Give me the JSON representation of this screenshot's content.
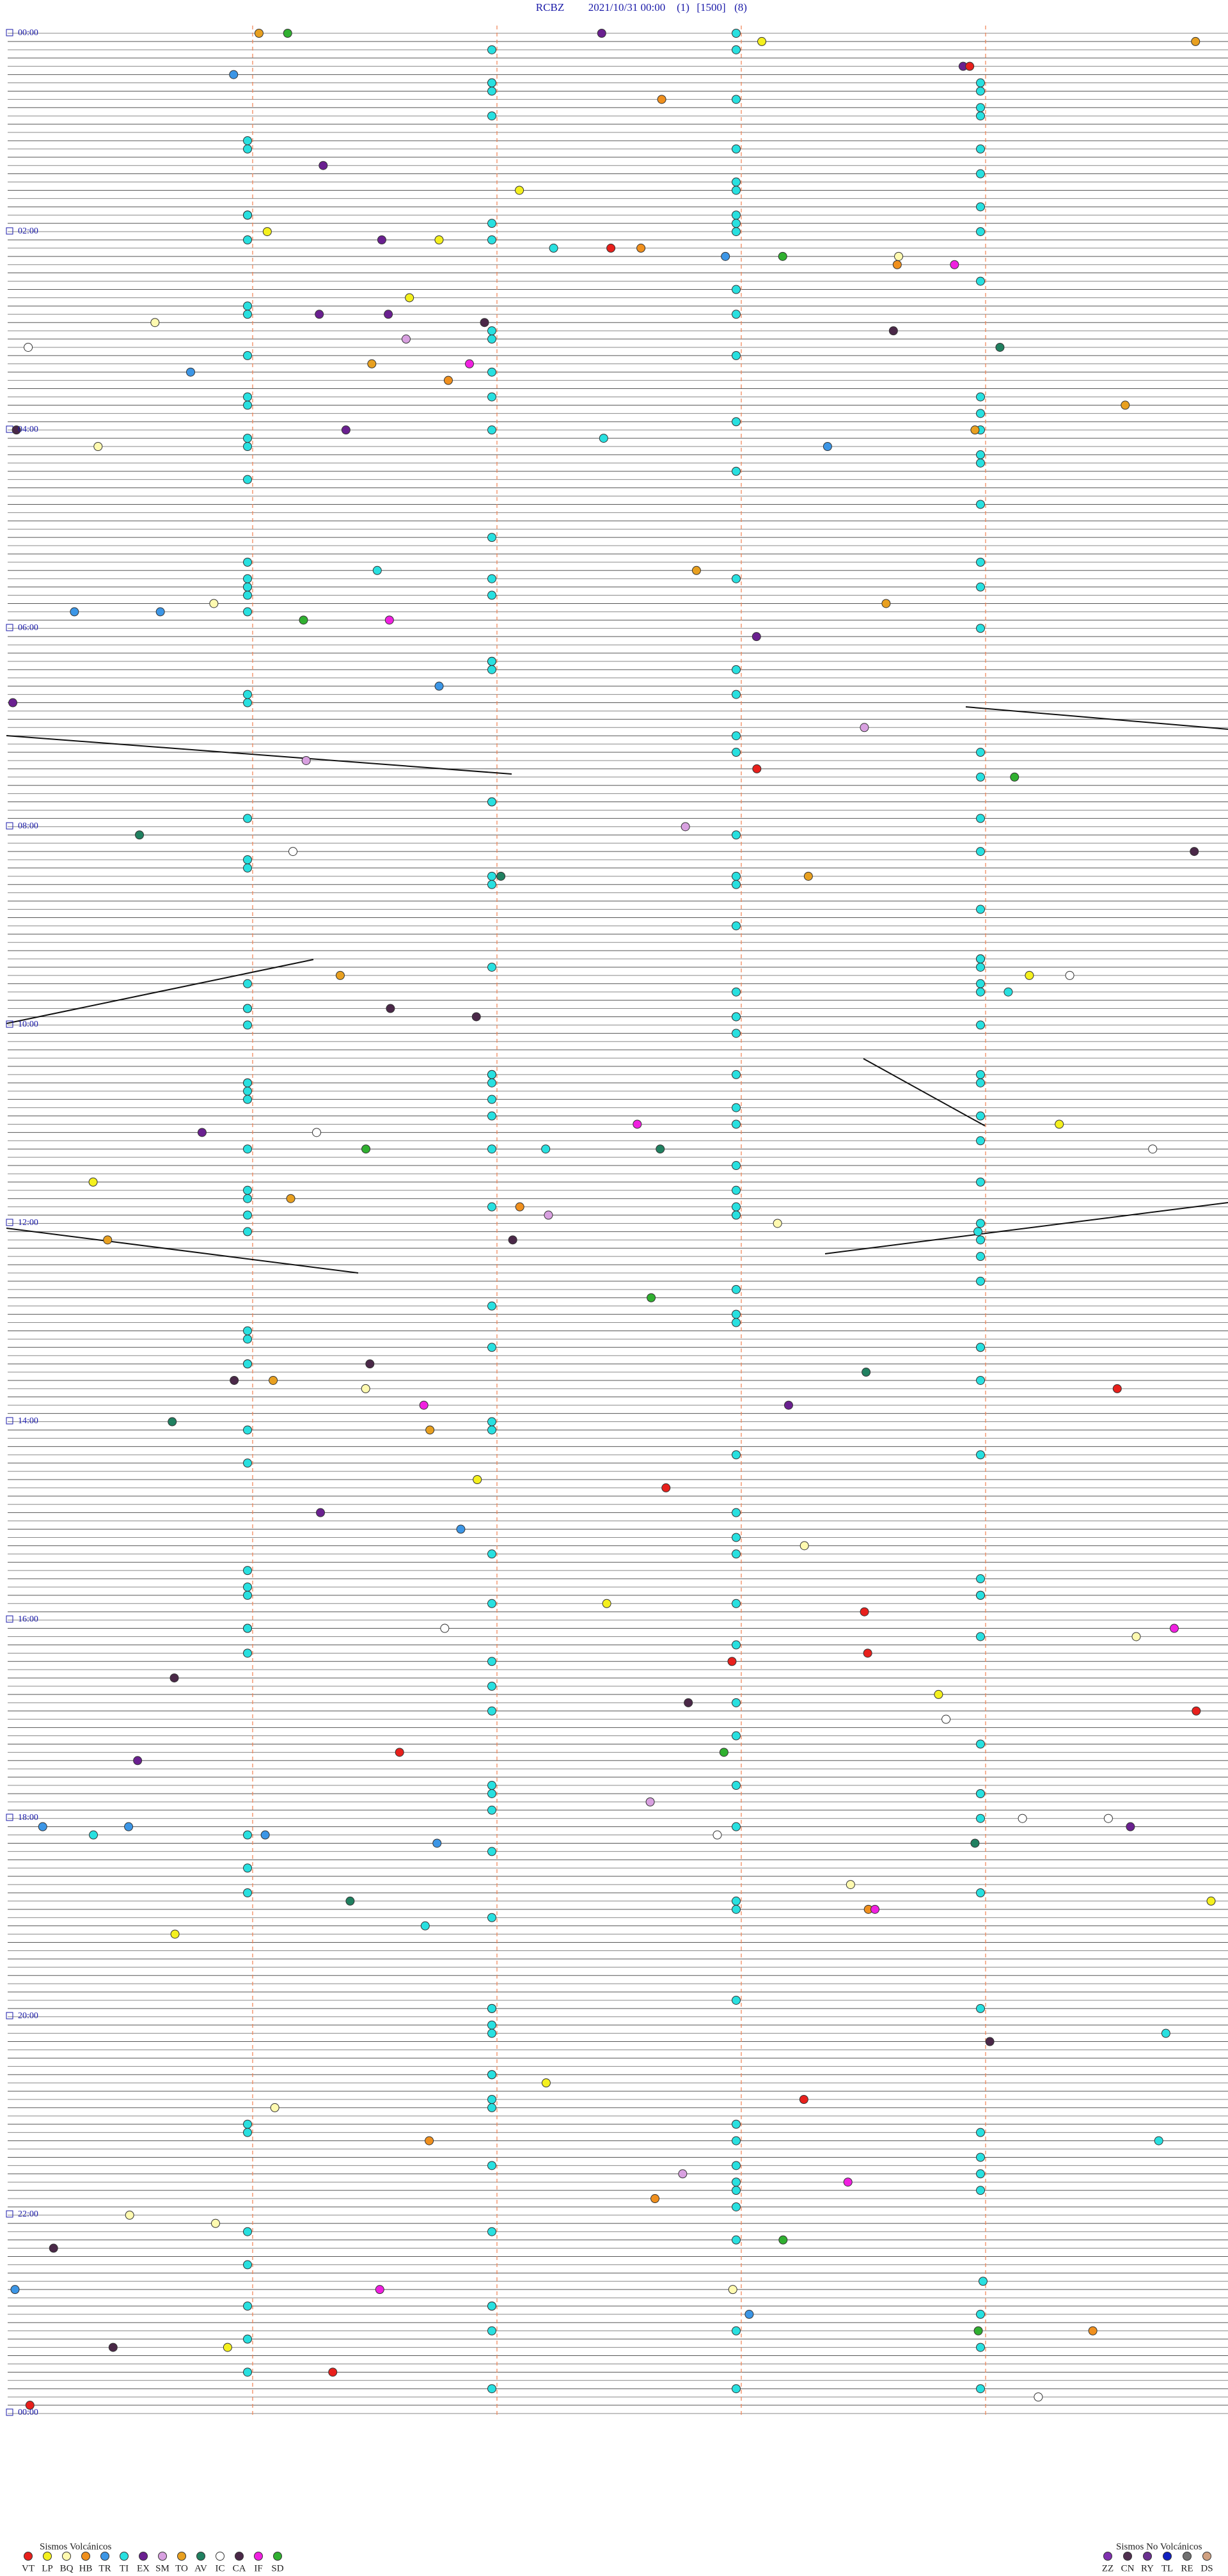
{
  "header": {
    "station": "RCBZ",
    "datetime": "2021/10/31 00:00",
    "params": [
      "(1)",
      "[1500]",
      "(8)"
    ]
  },
  "time_labels": [
    "00:00",
    "02:00",
    "04:00",
    "06:00",
    "08:00",
    "10:00",
    "12:00",
    "14:00",
    "16:00",
    "18:00",
    "20:00",
    "22:00",
    "00:00"
  ],
  "legend_volcanic": {
    "title": "Sismos Volcánicos",
    "items": [
      {
        "code": "VT",
        "color": "#e8201c"
      },
      {
        "code": "LP",
        "color": "#f4f01e"
      },
      {
        "code": "BQ",
        "color": "#fffab0"
      },
      {
        "code": "HB",
        "color": "#f0901e"
      },
      {
        "code": "TR",
        "color": "#3c96e6"
      },
      {
        "code": "TI",
        "color": "#28e0e0"
      },
      {
        "code": "EX",
        "color": "#6a2090"
      },
      {
        "code": "SM",
        "color": "#d8a0e0"
      },
      {
        "code": "TO",
        "color": "#e8a020"
      },
      {
        "code": "AV",
        "color": "#208060"
      },
      {
        "code": "IC",
        "color": "#ffffff"
      },
      {
        "code": "CA",
        "color": "#4a2848"
      },
      {
        "code": "IF",
        "color": "#f020e0"
      },
      {
        "code": "SD",
        "color": "#30b030"
      }
    ]
  },
  "legend_non_volcanic": {
    "title": "Sismos No Volcánicos",
    "items": [
      {
        "code": "ZZ",
        "color": "#8030b0"
      },
      {
        "code": "CN",
        "color": "#503050"
      },
      {
        "code": "RY",
        "color": "#6a3090"
      },
      {
        "code": "TL",
        "color": "#1020c0"
      },
      {
        "code": "RE",
        "color": "#707070"
      },
      {
        "code": "DS",
        "color": "#d0a080"
      }
    ]
  }
}
